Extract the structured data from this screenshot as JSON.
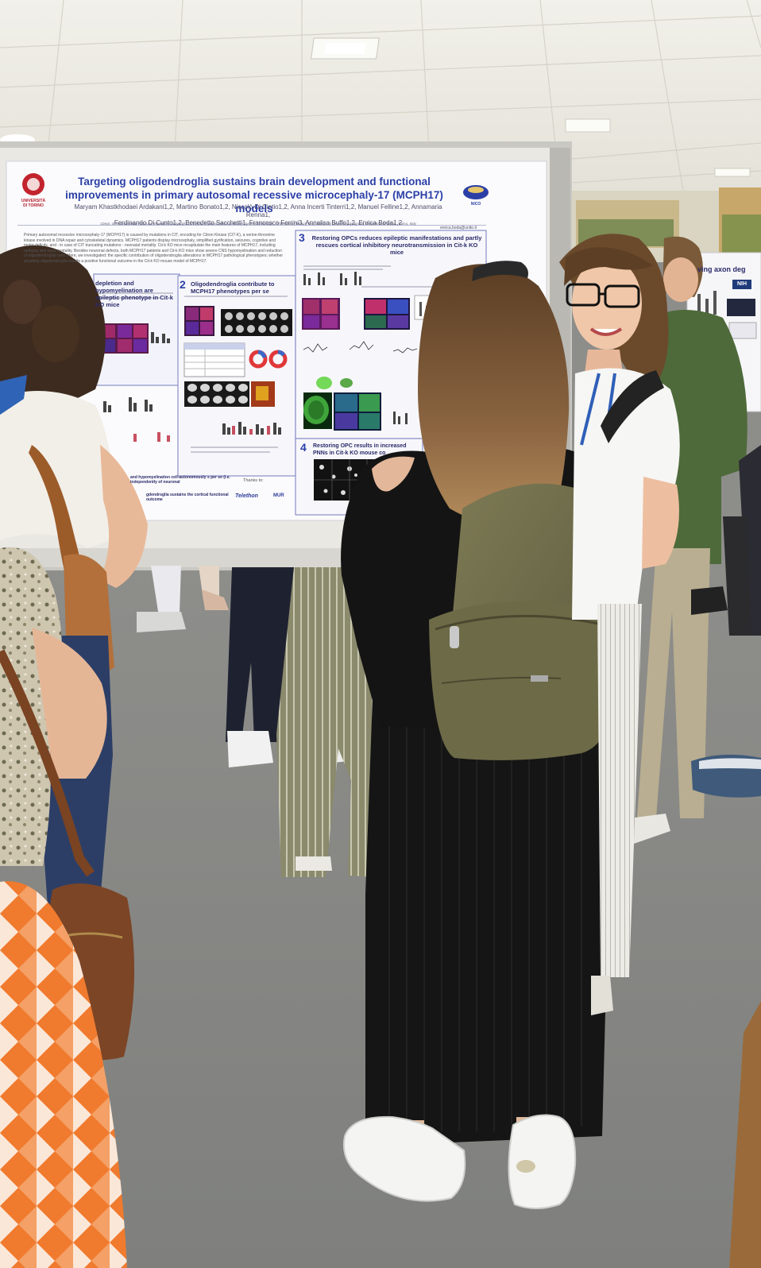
{
  "poster": {
    "title": "Targeting oligodendroglia sustains brain development and functional improvements in primary autosomal recessive microcephaly-17 (MCPH17) models",
    "authors_line1": "Maryam Khastkhodaei Ardakani1,2, Martino Bonato1,2, Niccolò Di Cintio1,2, Anna Incerti Tinterri1,2, Manuel Felline1,2, Annamaria Renna1,",
    "authors_line2": "Ferdinando Di Cunto1,2, Benedetto Sacchetti1, Francesco Ferrini3, Annalisa Buffo1,2, Enrica Boda1,2",
    "affiliations": "1Dept. of Neuroscience Rita Levi Montalcini, Università di Torino; 2Neuroscience Institute Cavalieri Ottolenghi, Orbassano (Torino), Italy; 3Dept. of Veterinary Sciences, Università di Torino, Torino, Italy",
    "email": "enrica.boda@unito.it",
    "intro": "Primary autosomal recessive microcephaly-17 (MCPH17) is caused by mutations in CIT, encoding for Citron Kinase (CIT-K), a serine-threonine kinase involved in DNA repair and cytoskeletal dynamics. MCPH17 patients display microcephaly, simplified gyrification, seizures, cognitive and motor deficits, and - in case of CIT truncating mutations - neonatal mortality. Cit-k KO mice recapitulate the main features of MCPH17, including epilepsy and early mortality. Besides neuronal defects, both MCPH17 patients and Cit-k KO mice show severe CNS hypomyelination and reduction of oligodendroglial cells. Here, we investigated: the specific contribution of oligodendroglia alterations in MCPH17 pathological phenotypes; whether targeting oligodendroglia results a positive functional outcome in the Cit-k KO mouse model of MCPH17.",
    "logo_left": "UNIVERSITÀ DI TORINO",
    "logo_right": "NICO",
    "section1": "depletion and hypomyelination are epileptic phenotype in Cit-k KO mice",
    "section2_num": "2",
    "section2": "Oligodendroglia contribute to MCPH17 phenotypes per se",
    "section3_num": "3",
    "section3": "Restoring OPCs reduces epileptic manifestations and partly rescues cortical inhibitory neurotransmission in Cit-k KO mice",
    "section4_num": "4",
    "section4": "Restoring OPC results in increased PNNs in Cit-k KO mouse co",
    "conclusion1": "and hypomyelination cell-autonomously s per se (i.e. independently of neuronal",
    "conclusion2": "gdendroglia sustains the cortical functional outcome",
    "thanks": "Thanks to:",
    "sponsor1": "Telethon",
    "sponsor2": "MUR"
  },
  "background_poster": {
    "title_fragment": "ving axon deg",
    "badge": "NIH"
  },
  "colors": {
    "poster_title": "#2b3fa6",
    "carpet": "#8d8d8a",
    "ceiling": "#ecebe4"
  }
}
